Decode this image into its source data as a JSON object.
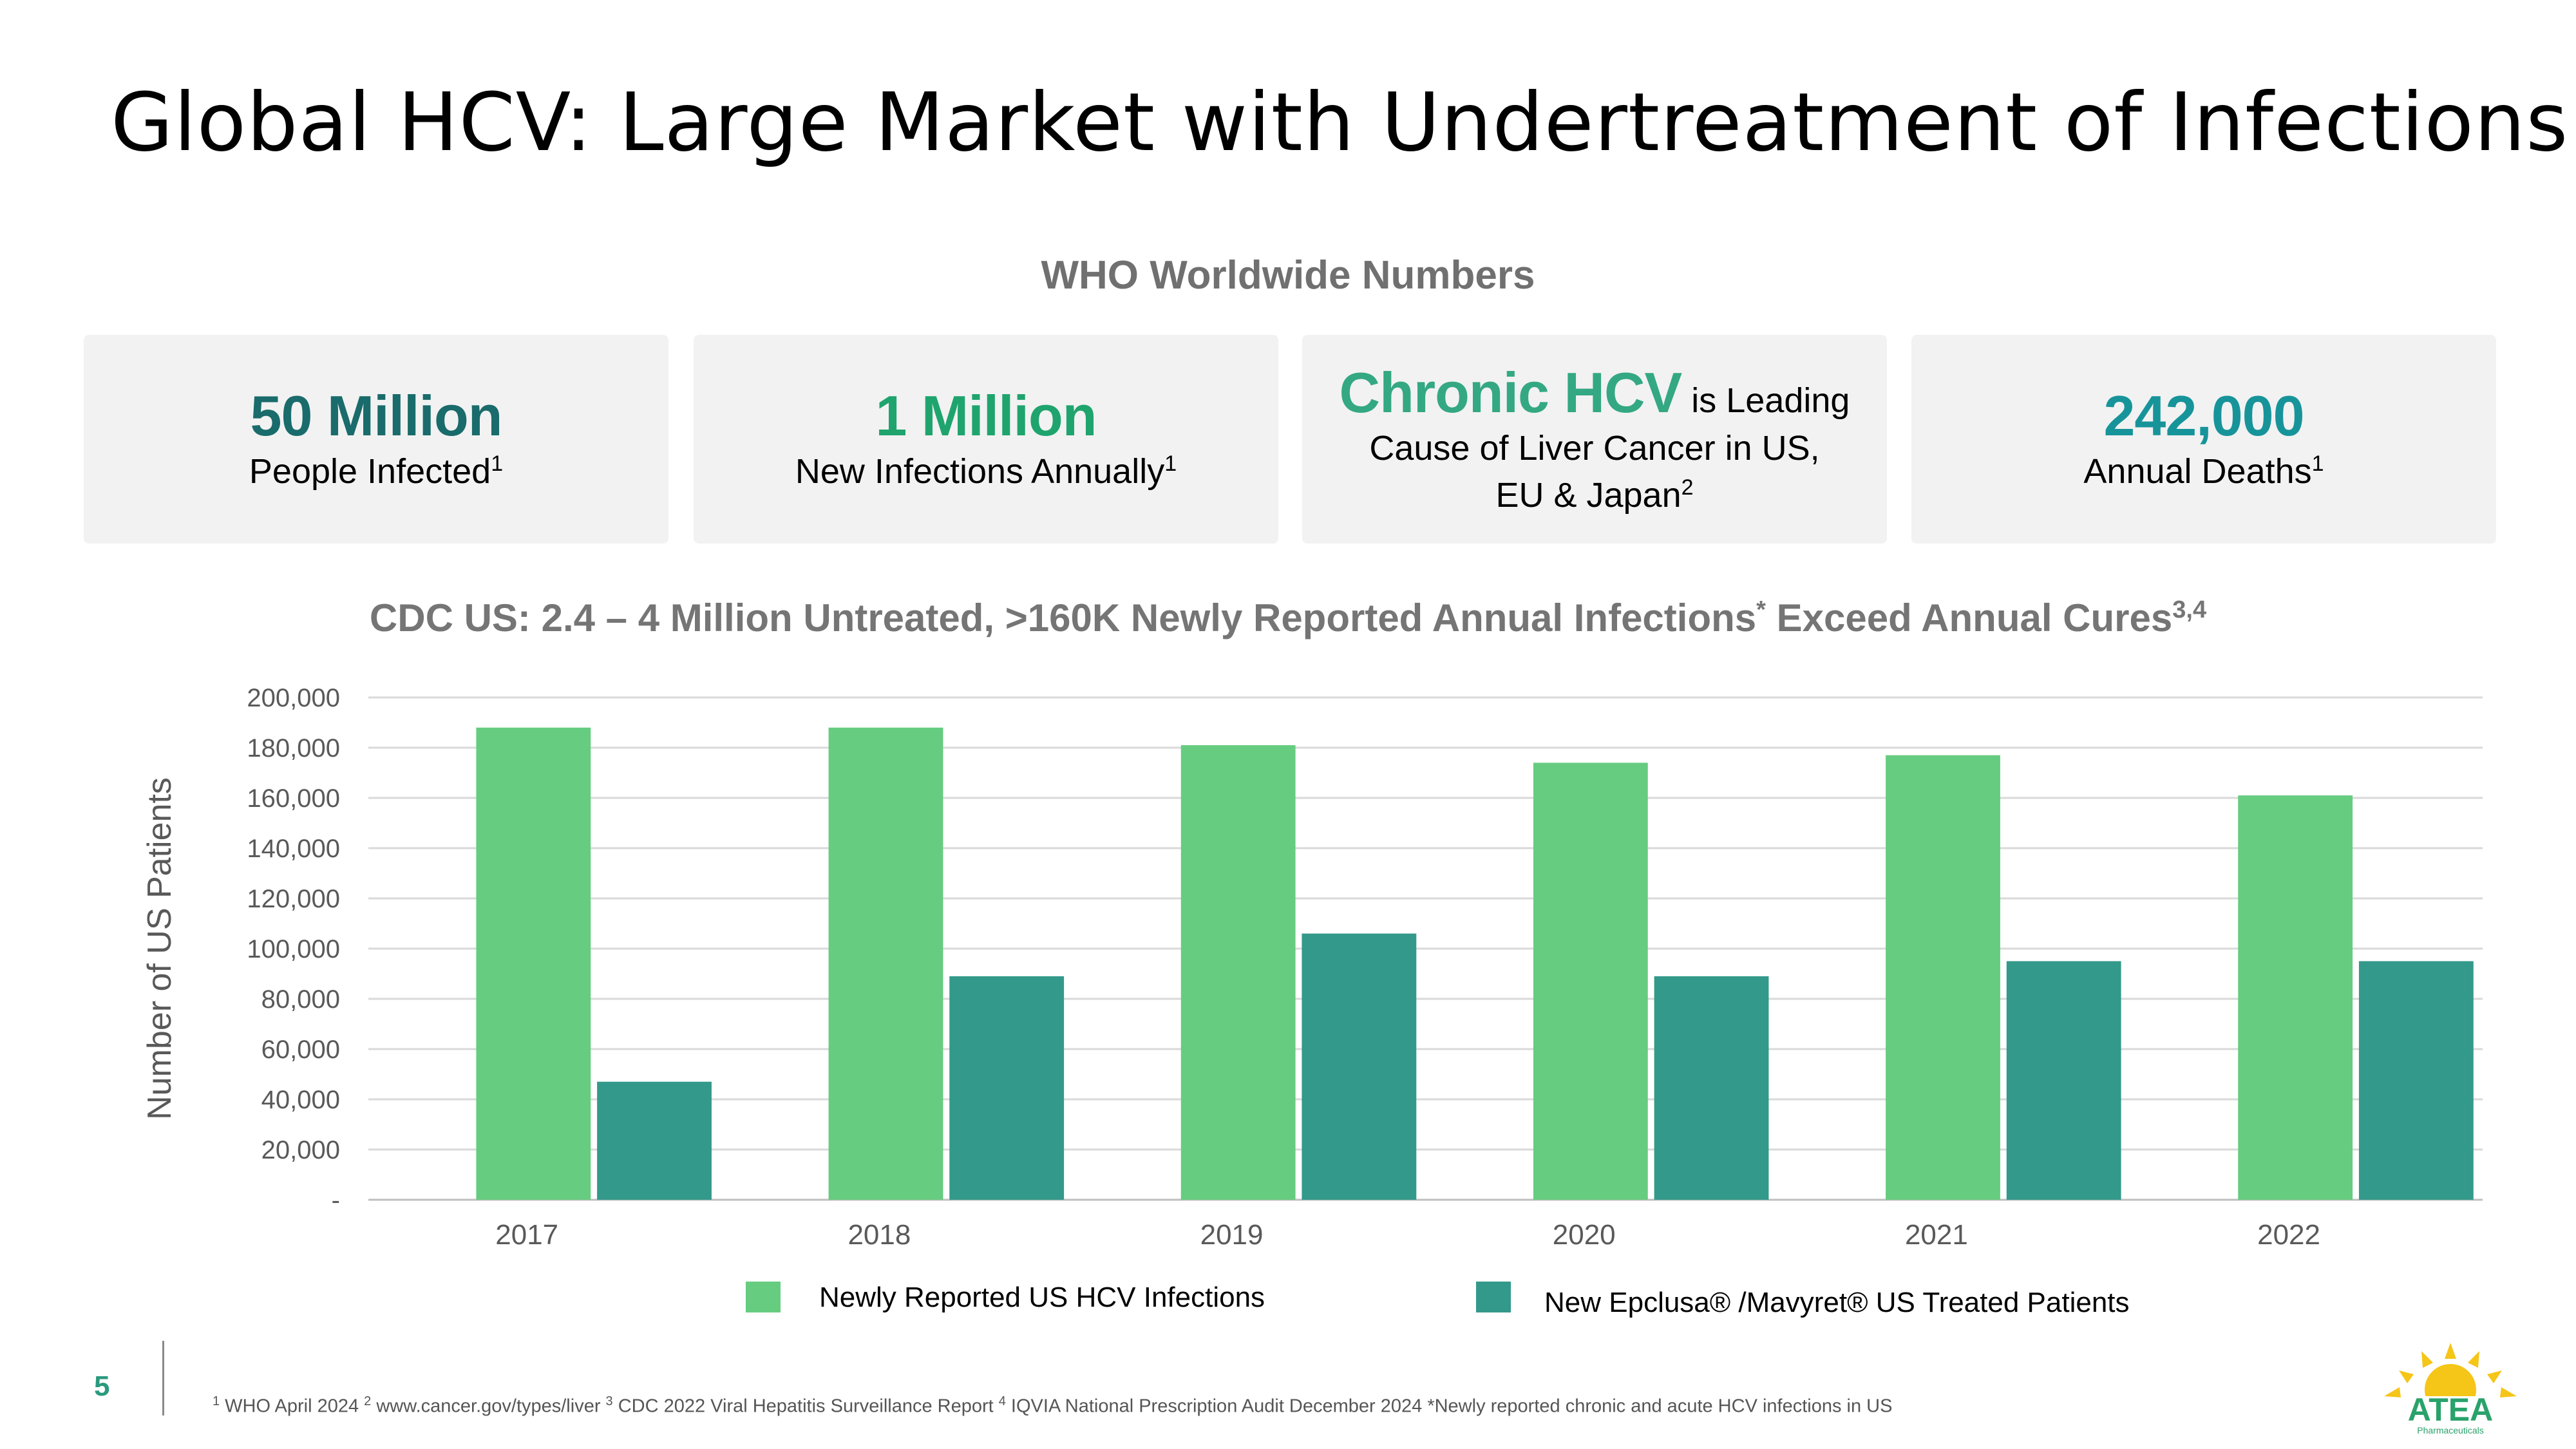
{
  "title": "Global HCV: Large Market with Undertreatment of Infections",
  "who_heading": "WHO Worldwide Numbers",
  "stats": [
    {
      "big": "50 Million",
      "sub": "People Infected",
      "sup": "1",
      "color": "#1a6b6b"
    },
    {
      "big": "1 Million",
      "sub": "New Infections Annually",
      "sup": "1",
      "color": "#1fa46e"
    },
    {
      "big": "Chronic HCV",
      "big_suffix": " is Leading",
      "sub_line1": "Cause of Liver Cancer  in US,",
      "sub_line2": "EU & Japan",
      "sup": "2",
      "color": "#34a882"
    },
    {
      "big": "242,000",
      "sub": "Annual Deaths",
      "sup": "1",
      "color": "#17949a"
    }
  ],
  "chart_title": {
    "main": "CDC US:  2.4 – 4 Million Untreated, >160K Newly Reported Annual Infections",
    "star": "*",
    "rest": " Exceed Annual Cures",
    "sup": "3,4"
  },
  "chart_data": {
    "type": "bar",
    "categories": [
      "2017",
      "2018",
      "2019",
      "2020",
      "2021",
      "2022"
    ],
    "series": [
      {
        "name": "Newly Reported US HCV Infections",
        "color": "#66cc80",
        "values": [
          188000,
          188000,
          181000,
          174000,
          177000,
          161000
        ]
      },
      {
        "name": "New Epclusa® /Mavyret® US Treated Patients",
        "color": "#33998a",
        "values": [
          47000,
          89000,
          106000,
          89000,
          95000,
          95000
        ]
      }
    ],
    "ylabel": "Number of US Patients",
    "ylim": [
      0,
      200000
    ],
    "yticks": [
      0,
      20000,
      40000,
      60000,
      80000,
      100000,
      120000,
      140000,
      160000,
      180000,
      200000
    ],
    "ytick_labels": [
      "-",
      "20,000",
      "40,000",
      "60,000",
      "80,000",
      "100,000",
      "120,000",
      "140,000",
      "160,000",
      "180,000",
      "200,000"
    ],
    "grid": true,
    "legend_position": "bottom"
  },
  "page_number": "5",
  "footnote": {
    "s1": "1",
    "t1": " WHO April 2024 ",
    "s2": "2",
    "t2": " www.cancer.gov/types/liver  ",
    "s3": "3",
    "t3": "  CDC 2022 Viral Hepatitis Surveillance Report ",
    "s4": "4",
    "t4": " IQVIA National Prescription Audit December 2024 *Newly reported chronic and acute HCV infections in US"
  },
  "logo_text": "ATEA",
  "logo_subtext": "Pharmaceuticals"
}
